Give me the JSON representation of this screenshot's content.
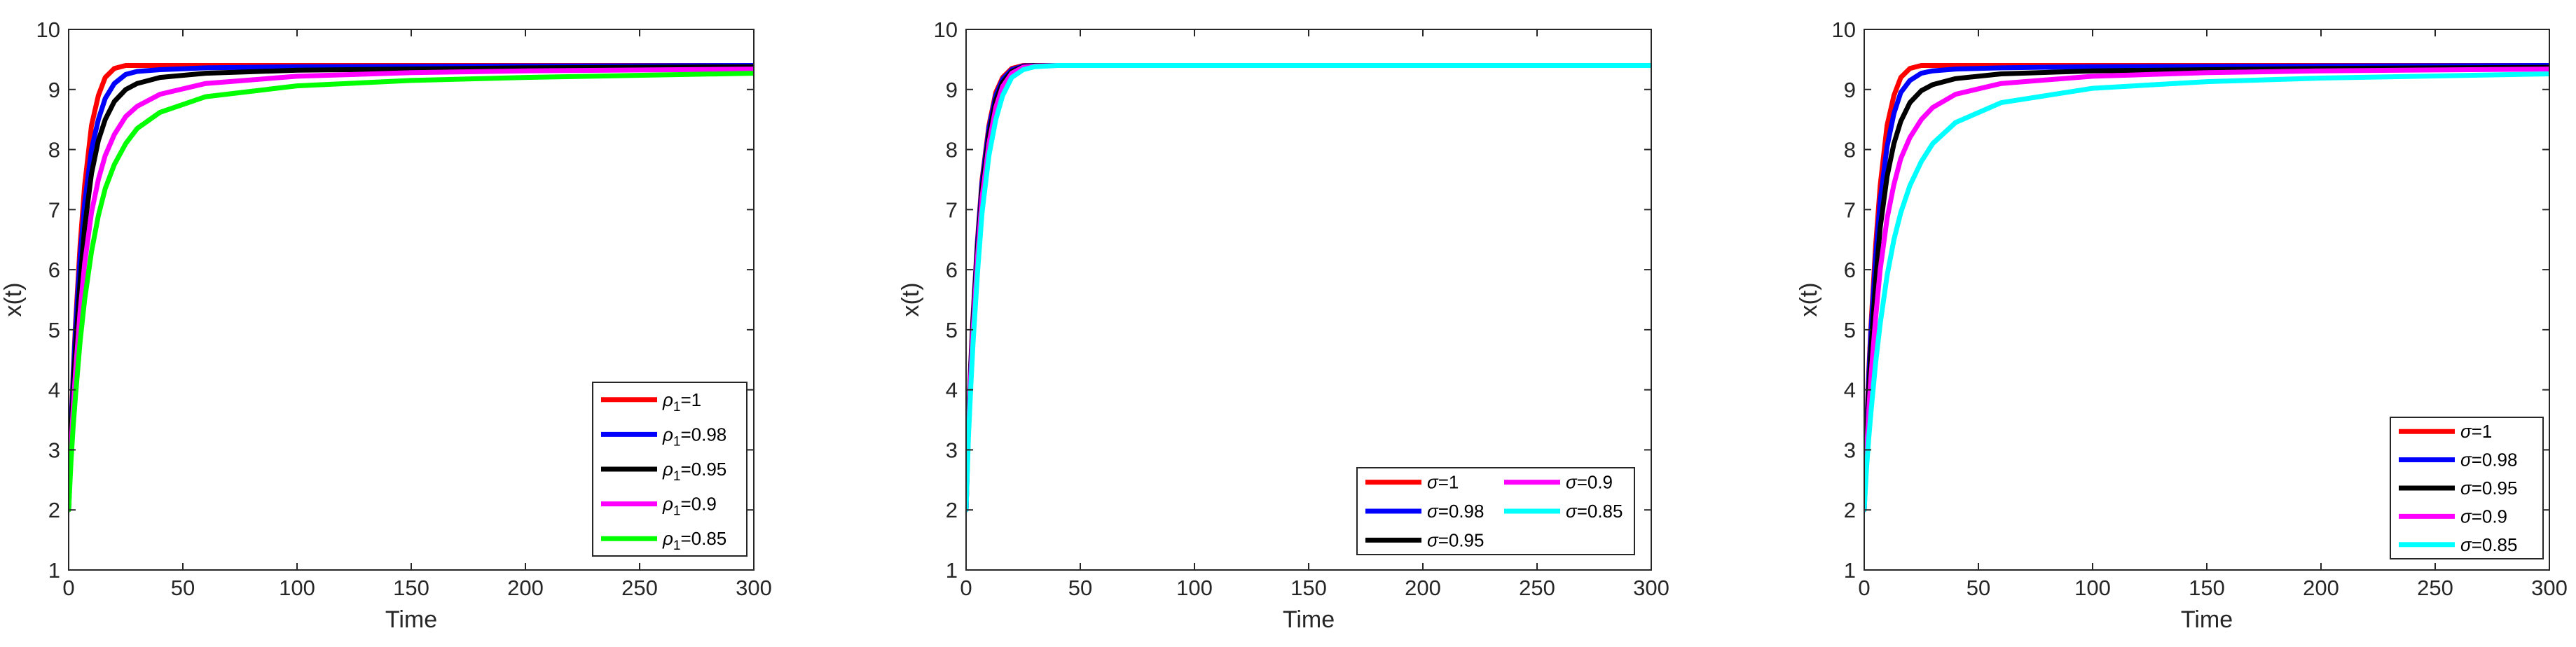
{
  "chart_data": [
    {
      "type": "line",
      "title": "",
      "xlabel": "Time",
      "ylabel": "x(t)",
      "xlim": [
        0,
        300
      ],
      "ylim": [
        1,
        10
      ],
      "xticks": [
        0,
        50,
        100,
        150,
        200,
        250,
        300
      ],
      "yticks": [
        1,
        2,
        3,
        4,
        5,
        6,
        7,
        8,
        9,
        10
      ],
      "grid": false,
      "legend": {
        "placement": "bottom-right",
        "columns": 1,
        "symbol": "ρ"
      },
      "series": [
        {
          "name": "=1",
          "subscript": "1",
          "color": "#ff0000",
          "x": [
            0,
            1,
            2,
            3,
            5,
            7,
            10,
            13,
            16,
            20,
            25,
            30,
            40,
            60,
            100,
            200,
            300
          ],
          "y": [
            2,
            3.3,
            4.3,
            5.1,
            6.4,
            7.4,
            8.4,
            8.9,
            9.2,
            9.35,
            9.4,
            9.4,
            9.4,
            9.4,
            9.4,
            9.4,
            9.4
          ]
        },
        {
          "name": "=0.98",
          "subscript": "1",
          "color": "#0000ff",
          "x": [
            0,
            1,
            2,
            3,
            5,
            7,
            10,
            13,
            16,
            20,
            25,
            30,
            40,
            60,
            100,
            200,
            300
          ],
          "y": [
            2,
            3.3,
            4.2,
            5.0,
            6.2,
            7.1,
            8.0,
            8.5,
            8.85,
            9.1,
            9.25,
            9.3,
            9.33,
            9.36,
            9.38,
            9.39,
            9.4
          ]
        },
        {
          "name": "=0.95",
          "subscript": "1",
          "color": "#000000",
          "x": [
            0,
            1,
            2,
            3,
            5,
            7,
            10,
            13,
            16,
            20,
            25,
            30,
            40,
            60,
            100,
            200,
            300
          ],
          "y": [
            2,
            3.2,
            4.0,
            4.7,
            5.8,
            6.7,
            7.6,
            8.15,
            8.5,
            8.8,
            9.0,
            9.1,
            9.2,
            9.27,
            9.32,
            9.36,
            9.38
          ]
        },
        {
          "name": "=0.9",
          "subscript": "1",
          "color": "#ff00ff",
          "x": [
            0,
            1,
            2,
            3,
            5,
            7,
            10,
            13,
            16,
            20,
            25,
            30,
            40,
            60,
            100,
            150,
            200,
            300
          ],
          "y": [
            2,
            3.0,
            3.7,
            4.3,
            5.3,
            6.1,
            6.95,
            7.5,
            7.9,
            8.25,
            8.55,
            8.72,
            8.92,
            9.1,
            9.22,
            9.28,
            9.31,
            9.34
          ]
        },
        {
          "name": "=0.85",
          "subscript": "1",
          "color": "#00ff00",
          "x": [
            0,
            1,
            2,
            3,
            5,
            7,
            10,
            13,
            16,
            20,
            25,
            30,
            40,
            60,
            100,
            150,
            200,
            300
          ],
          "y": [
            2,
            2.8,
            3.4,
            3.9,
            4.8,
            5.5,
            6.3,
            6.9,
            7.35,
            7.75,
            8.1,
            8.35,
            8.62,
            8.88,
            9.06,
            9.15,
            9.2,
            9.27
          ]
        }
      ]
    },
    {
      "type": "line",
      "title": "",
      "xlabel": "Time",
      "ylabel": "x(t)",
      "xlim": [
        0,
        300
      ],
      "ylim": [
        1,
        10
      ],
      "xticks": [
        0,
        50,
        100,
        150,
        200,
        250,
        300
      ],
      "yticks": [
        1,
        2,
        3,
        4,
        5,
        6,
        7,
        8,
        9,
        10
      ],
      "grid": false,
      "legend": {
        "placement": "bottom-right",
        "columns": 2,
        "symbol": "σ"
      },
      "series": [
        {
          "name": "=1",
          "color": "#ff0000",
          "x": [
            0,
            1,
            2,
            3,
            5,
            7,
            10,
            13,
            16,
            20,
            25,
            30,
            40,
            60,
            100,
            200,
            300
          ],
          "y": [
            2,
            3.5,
            4.4,
            5.2,
            6.5,
            7.5,
            8.4,
            8.95,
            9.2,
            9.35,
            9.4,
            9.4,
            9.4,
            9.4,
            9.4,
            9.4,
            9.4
          ]
        },
        {
          "name": "=0.98",
          "color": "#0000ff",
          "x": [
            0,
            1,
            2,
            3,
            5,
            7,
            10,
            13,
            16,
            20,
            25,
            30,
            40,
            60,
            100,
            200,
            300
          ],
          "y": [
            2,
            3.45,
            4.35,
            5.15,
            6.45,
            7.45,
            8.35,
            8.9,
            9.17,
            9.33,
            9.39,
            9.4,
            9.4,
            9.4,
            9.4,
            9.4,
            9.4
          ]
        },
        {
          "name": "=0.95",
          "color": "#000000",
          "x": [
            0,
            1,
            2,
            3,
            5,
            7,
            10,
            13,
            16,
            20,
            25,
            30,
            40,
            60,
            100,
            200,
            300
          ],
          "y": [
            2,
            3.4,
            4.3,
            5.1,
            6.35,
            7.35,
            8.25,
            8.82,
            9.12,
            9.3,
            9.38,
            9.4,
            9.4,
            9.4,
            9.4,
            9.4,
            9.4
          ]
        },
        {
          "name": "=0.9",
          "color": "#ff00ff",
          "x": [
            0,
            1,
            2,
            3,
            5,
            7,
            10,
            13,
            16,
            20,
            25,
            30,
            40,
            60,
            100,
            200,
            300
          ],
          "y": [
            2,
            3.3,
            4.2,
            4.95,
            6.2,
            7.2,
            8.1,
            8.7,
            9.05,
            9.27,
            9.37,
            9.39,
            9.4,
            9.4,
            9.4,
            9.4,
            9.4
          ]
        },
        {
          "name": "=0.85",
          "color": "#00ffff",
          "x": [
            0,
            1,
            2,
            3,
            5,
            7,
            10,
            13,
            16,
            20,
            25,
            30,
            40,
            50,
            60,
            100,
            200,
            300
          ],
          "y": [
            2,
            3.2,
            4.0,
            4.75,
            5.95,
            6.95,
            7.9,
            8.5,
            8.9,
            9.2,
            9.33,
            9.38,
            9.4,
            9.4,
            9.4,
            9.4,
            9.4,
            9.4
          ]
        }
      ]
    },
    {
      "type": "line",
      "title": "",
      "xlabel": "Time",
      "ylabel": "x(t)",
      "xlim": [
        0,
        300
      ],
      "ylim": [
        1,
        10
      ],
      "xticks": [
        0,
        50,
        100,
        150,
        200,
        250,
        300
      ],
      "yticks": [
        1,
        2,
        3,
        4,
        5,
        6,
        7,
        8,
        9,
        10
      ],
      "grid": false,
      "legend": {
        "placement": "bottom-right",
        "columns": 1,
        "symbol": "σ"
      },
      "series": [
        {
          "name": "=1",
          "color": "#ff0000",
          "x": [
            0,
            1,
            2,
            3,
            5,
            7,
            10,
            13,
            16,
            20,
            25,
            30,
            40,
            60,
            100,
            200,
            300
          ],
          "y": [
            2,
            3.3,
            4.3,
            5.1,
            6.4,
            7.4,
            8.4,
            8.9,
            9.2,
            9.35,
            9.4,
            9.4,
            9.4,
            9.4,
            9.4,
            9.4,
            9.4
          ]
        },
        {
          "name": "=0.98",
          "color": "#0000ff",
          "x": [
            0,
            1,
            2,
            3,
            5,
            7,
            10,
            13,
            16,
            20,
            25,
            30,
            40,
            60,
            100,
            200,
            300
          ],
          "y": [
            2,
            3.25,
            4.2,
            5.0,
            6.2,
            7.15,
            8.05,
            8.6,
            8.95,
            9.15,
            9.27,
            9.31,
            9.34,
            9.36,
            9.38,
            9.39,
            9.4
          ]
        },
        {
          "name": "=0.95",
          "color": "#000000",
          "x": [
            0,
            1,
            2,
            3,
            5,
            7,
            10,
            13,
            16,
            20,
            25,
            30,
            40,
            60,
            100,
            200,
            300
          ],
          "y": [
            2,
            3.15,
            4.0,
            4.7,
            5.8,
            6.7,
            7.55,
            8.1,
            8.47,
            8.78,
            8.98,
            9.08,
            9.18,
            9.26,
            9.31,
            9.35,
            9.37
          ]
        },
        {
          "name": "=0.9",
          "color": "#ff00ff",
          "x": [
            0,
            1,
            2,
            3,
            5,
            7,
            10,
            13,
            16,
            20,
            25,
            30,
            40,
            60,
            100,
            150,
            200,
            300
          ],
          "y": [
            2,
            2.95,
            3.65,
            4.25,
            5.2,
            6.0,
            6.85,
            7.42,
            7.85,
            8.2,
            8.5,
            8.7,
            8.92,
            9.1,
            9.22,
            9.28,
            9.31,
            9.34
          ]
        },
        {
          "name": "=0.85",
          "color": "#00ffff",
          "x": [
            0,
            1,
            2,
            3,
            5,
            7,
            10,
            13,
            16,
            20,
            25,
            30,
            40,
            60,
            100,
            150,
            200,
            300
          ],
          "y": [
            2,
            2.7,
            3.2,
            3.65,
            4.45,
            5.1,
            5.9,
            6.5,
            6.95,
            7.4,
            7.8,
            8.1,
            8.45,
            8.78,
            9.02,
            9.13,
            9.19,
            9.26
          ]
        }
      ]
    }
  ]
}
